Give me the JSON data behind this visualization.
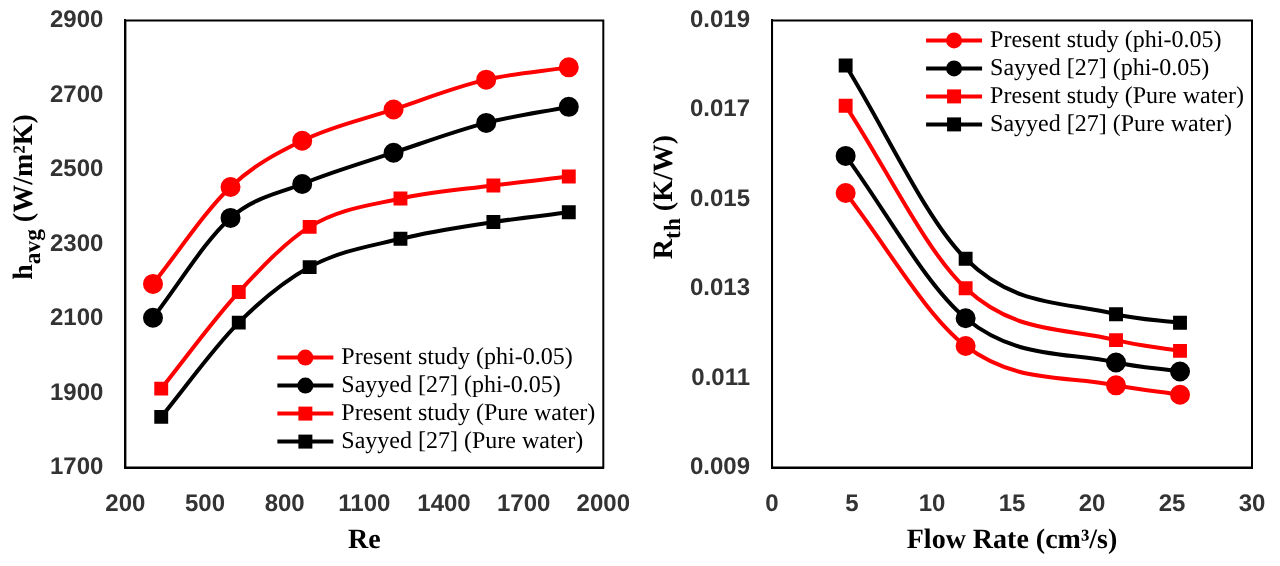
{
  "chart_data": [
    {
      "type": "line",
      "xlabel": "Re",
      "ylabel": "h$_{avg}$ (W/m²K)",
      "xlim": [
        200,
        2000
      ],
      "xticks": [
        200,
        500,
        800,
        1100,
        1400,
        1700,
        2000
      ],
      "ylim": [
        1700,
        2900
      ],
      "yticks": [
        1700,
        1900,
        2100,
        2300,
        2500,
        2700,
        2900
      ],
      "grid": false,
      "legend": "bottom right",
      "series": [
        {
          "name": "Present study (phi-0.05)",
          "color": "#ff0000",
          "marker": "circle",
          "x": [
            304,
            596,
            866,
            1210,
            1559,
            1870
          ],
          "values": [
            2193,
            2453,
            2577,
            2661,
            2741,
            2774
          ]
        },
        {
          "name": "Sayyed [27] (phi-0.05)",
          "color": "#000000",
          "marker": "circle",
          "x": [
            304,
            596,
            866,
            1210,
            1559,
            1870
          ],
          "values": [
            2102,
            2370,
            2461,
            2545,
            2625,
            2668
          ]
        },
        {
          "name": "Present study (Pure water)",
          "color": "#ff0000",
          "marker": "square",
          "x": [
            335,
            627,
            894,
            1236,
            1586,
            1870
          ],
          "values": [
            1912,
            2171,
            2346,
            2422,
            2457,
            2481
          ]
        },
        {
          "name": "Sayyed [27] (Pure water)",
          "color": "#000000",
          "marker": "square",
          "x": [
            335,
            627,
            894,
            1236,
            1586,
            1870
          ],
          "values": [
            1836,
            2089,
            2238,
            2314,
            2359,
            2385
          ]
        }
      ]
    },
    {
      "type": "line",
      "xlabel": "Flow Rate (cm³/s)",
      "ylabel": "R$_{th}$ (K/W)",
      "xlim": [
        0,
        30
      ],
      "xticks": [
        0,
        5,
        10,
        15,
        20,
        25,
        30
      ],
      "ylim": [
        0.009,
        0.019
      ],
      "yticks": [
        0.009,
        0.011,
        0.013,
        0.015,
        0.017,
        0.019
      ],
      "grid": false,
      "legend": "top right",
      "series": [
        {
          "name": "Present study (phi-0.05)",
          "color": "#ff0000",
          "marker": "circle",
          "x": [
            4.6,
            12.1,
            21.5,
            25.5
          ],
          "values": [
            0.01514,
            0.01172,
            0.01084,
            0.01063
          ]
        },
        {
          "name": "Sayyed [27] (phi-0.05)",
          "color": "#000000",
          "marker": "circle",
          "x": [
            4.6,
            12.1,
            21.5,
            25.5
          ],
          "values": [
            0.01597,
            0.01234,
            0.01135,
            0.01115
          ]
        },
        {
          "name": "Present study (Pure water)",
          "color": "#ff0000",
          "marker": "square",
          "x": [
            4.6,
            12.1,
            21.5,
            25.5
          ],
          "values": [
            0.01709,
            0.01301,
            0.01185,
            0.01161
          ]
        },
        {
          "name": "Sayyed [27] (Pure water)",
          "color": "#000000",
          "marker": "square",
          "x": [
            4.6,
            12.1,
            21.5,
            25.5
          ],
          "values": [
            0.01799,
            0.01367,
            0.01243,
            0.01224
          ]
        }
      ]
    }
  ]
}
